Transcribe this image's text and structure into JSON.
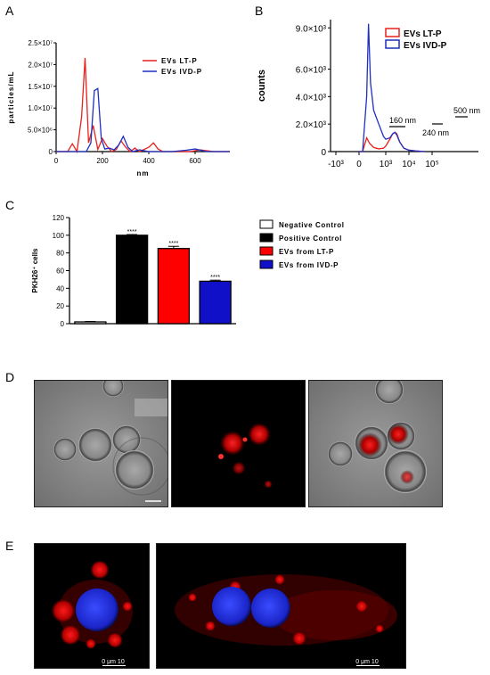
{
  "panels": {
    "a": "A",
    "b": "B",
    "c": "C",
    "d": "D",
    "e": "E"
  },
  "colors": {
    "lt": "#e8211d",
    "ivd": "#1f2fc4",
    "black": "#000000"
  },
  "chart_data": [
    {
      "panel": "A",
      "type": "line",
      "xlabel": "nm",
      "ylabel": "particles/mL",
      "xlim": [
        0,
        750
      ],
      "ylim": [
        0,
        25000000
      ],
      "x_ticks": [
        "0",
        "200",
        "400",
        "600"
      ],
      "y_ticks": [
        "0",
        "5.0×10⁶",
        "1.0×10⁷",
        "1.5×10⁷",
        "2.0×10⁷",
        "2.5×10⁷"
      ],
      "series": [
        {
          "name": "EVs LT-P",
          "x": [
            0,
            50,
            70,
            90,
            110,
            125,
            140,
            160,
            180,
            200,
            220,
            240,
            260,
            280,
            300,
            320,
            340,
            360,
            380,
            400,
            420,
            440,
            460,
            500,
            540,
            580,
            620,
            650,
            680,
            750
          ],
          "y": [
            0,
            0,
            1800000,
            0,
            8000000,
            21500000,
            2000000,
            6000000,
            500000,
            3000000,
            1200000,
            0,
            500000,
            2500000,
            1000000,
            0,
            800000,
            0,
            500000,
            1000000,
            2000000,
            600000,
            0,
            0,
            0,
            0,
            400000,
            200000,
            0,
            0
          ]
        },
        {
          "name": "EVs IVD-P",
          "x": [
            0,
            100,
            130,
            150,
            165,
            180,
            195,
            210,
            230,
            250,
            270,
            290,
            310,
            330,
            360,
            400,
            450,
            500,
            560,
            600,
            650,
            750
          ],
          "y": [
            0,
            0,
            0,
            2000000,
            14000000,
            14500000,
            3000000,
            600000,
            800000,
            400000,
            1500000,
            3500000,
            1000000,
            0,
            400000,
            0,
            0,
            0,
            300000,
            600000,
            0,
            0
          ]
        }
      ],
      "legend": [
        "EVs LT-P",
        "EVs IVD-P"
      ],
      "grid": false
    },
    {
      "panel": "B",
      "type": "line",
      "xlabel": "",
      "ylabel": "counts",
      "x_scale": "biexponential",
      "x_ticks": [
        "-10³",
        "0",
        "10³",
        "10⁴",
        "10⁵"
      ],
      "y_ticks": [
        "0",
        "2.0×10³",
        "4.0×10³",
        "6.0×10³",
        "9.0×10³"
      ],
      "ylim": [
        0,
        9600
      ],
      "series": [
        {
          "name": "EVs LT-P",
          "x": [
            0,
            100,
            150,
            200,
            300,
            500,
            800,
            1000,
            1500,
            2000,
            2500,
            3000,
            4000,
            6000,
            10000,
            20000,
            50000
          ],
          "y": [
            0,
            0,
            1000,
            600,
            300,
            200,
            250,
            400,
            900,
            1300,
            1400,
            1300,
            700,
            250,
            100,
            50,
            0
          ]
        },
        {
          "name": "EVs IVD-P",
          "x": [
            0,
            100,
            150,
            180,
            220,
            300,
            500,
            800,
            1000,
            1500,
            2000,
            2500,
            3000,
            4000,
            6000,
            10000,
            20000,
            50000
          ],
          "y": [
            0,
            0,
            4000,
            9300,
            5000,
            3000,
            2000,
            1100,
            900,
            1000,
            1300,
            1400,
            1200,
            700,
            250,
            100,
            50,
            0
          ]
        }
      ],
      "annotations": [
        "160 nm",
        "240 nm",
        "500 nm"
      ],
      "legend": [
        "EVs LT-P",
        "EVs IVD-P"
      ],
      "grid": false
    },
    {
      "panel": "C",
      "type": "bar",
      "ylabel": "PKH26⁺ cells",
      "ylim": [
        0,
        120
      ],
      "y_ticks": [
        "0",
        "20",
        "40",
        "60",
        "80",
        "100",
        "120"
      ],
      "categories": [
        "Negative Control",
        "Positive Control",
        "EVs from LT-P",
        "EVs from IVD-P"
      ],
      "values": [
        2,
        100,
        85,
        48
      ],
      "errors": [
        0.5,
        0.8,
        2.5,
        1.2
      ],
      "significance": [
        "",
        "****",
        "****",
        "****"
      ],
      "bar_colors": [
        "#ffffff",
        "#000000",
        "#ff0000",
        "#1010c8"
      ],
      "legend": [
        "Negative Control",
        "Positive Control",
        "EVs from LT-P",
        "EVs from IVD-P"
      ],
      "grid": false
    }
  ],
  "scalebars": {
    "e1": "0  μm  10",
    "e2": "0  μm  10"
  }
}
